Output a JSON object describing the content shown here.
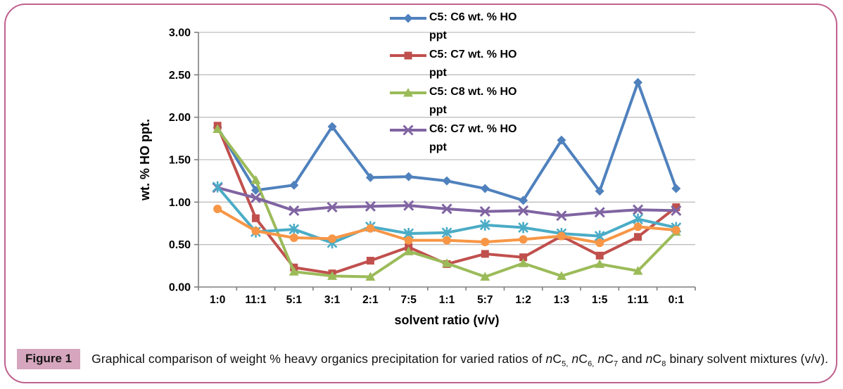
{
  "figure": {
    "caption_label": "Figure 1",
    "caption_segments": [
      {
        "t": "Graphical comparison of weight % heavy organics precipitation for varied ratios of "
      },
      {
        "t": "n",
        "i": true
      },
      {
        "t": "C"
      },
      {
        "t": "5,",
        "sub": true
      },
      {
        "t": " "
      },
      {
        "t": "n",
        "i": true
      },
      {
        "t": "C"
      },
      {
        "t": "6,",
        "sub": true
      },
      {
        "t": " "
      },
      {
        "t": "n",
        "i": true
      },
      {
        "t": "C"
      },
      {
        "t": "7",
        "sub": true
      },
      {
        "t": " and "
      },
      {
        "t": "n",
        "i": true
      },
      {
        "t": "C"
      },
      {
        "t": "8",
        "sub": true
      },
      {
        "t": " binary solvent mixtures (v/v)."
      }
    ]
  },
  "style": {
    "border_color": "#c0618e",
    "caption_badge_bg": "#d5a6bd",
    "gridline_color": "#bfbfbf",
    "axis_color": "#7f7f7f",
    "text_color": "#000000"
  },
  "chart_data": {
    "type": "line",
    "title": "",
    "xlabel": "solvent ratio (v/v)",
    "ylabel": "wt. % HO ppt.",
    "ylim": [
      0,
      3.0
    ],
    "ytick_step": 0.5,
    "ytick_labels": [
      "0.00",
      "0.50",
      "1.00",
      "1.50",
      "2.00",
      "2.50",
      "3.00"
    ],
    "grid": true,
    "legend_position": "top-inside-right",
    "categories": [
      "1:0",
      "11:1",
      "5:1",
      "3:1",
      "2:1",
      "7:5",
      "1:1",
      "5:7",
      "1:2",
      "1:3",
      "1:5",
      "1:11",
      "0:1"
    ],
    "series": [
      {
        "name": "C5: C6 wt. % HO ppt",
        "legend_label": "C5: C6 wt. % HO\nppt",
        "in_legend": true,
        "color": "#4f81bd",
        "marker": "diamond",
        "values": [
          1.88,
          1.14,
          1.2,
          1.89,
          1.29,
          1.3,
          1.25,
          1.16,
          1.02,
          1.73,
          1.13,
          2.41,
          1.16
        ]
      },
      {
        "name": "C5: C7 wt. % HO ppt",
        "legend_label": "C5: C7 wt. % HO\nppt",
        "in_legend": true,
        "color": "#c0504d",
        "marker": "square",
        "values": [
          1.9,
          0.81,
          0.23,
          0.16,
          0.31,
          0.47,
          0.27,
          0.39,
          0.35,
          0.6,
          0.37,
          0.59,
          0.94
        ]
      },
      {
        "name": "C5: C8 wt. % HO ppt",
        "legend_label": "C5: C8 wt. % HO\nppt",
        "in_legend": true,
        "color": "#9bbb59",
        "marker": "triangle",
        "values": [
          1.86,
          1.26,
          0.18,
          0.13,
          0.12,
          0.42,
          0.28,
          0.12,
          0.28,
          0.13,
          0.27,
          0.19,
          0.65
        ]
      },
      {
        "name": "C6: C7 wt. % HO ppt",
        "legend_label": "C6: C7 wt. % HO\nppt",
        "in_legend": true,
        "color": "#8064a2",
        "marker": "x",
        "values": [
          1.17,
          1.05,
          0.9,
          0.94,
          0.95,
          0.96,
          0.92,
          0.89,
          0.9,
          0.84,
          0.88,
          0.91,
          0.9
        ]
      },
      {
        "name": "",
        "legend_label": "",
        "in_legend": false,
        "color": "#4bacc6",
        "marker": "asterisk",
        "values": [
          1.18,
          0.65,
          0.68,
          0.52,
          0.71,
          0.63,
          0.64,
          0.73,
          0.7,
          0.63,
          0.6,
          0.8,
          0.7
        ]
      },
      {
        "name": "",
        "legend_label": "",
        "in_legend": false,
        "color": "#f79646",
        "marker": "circle",
        "values": [
          0.92,
          0.66,
          0.58,
          0.57,
          0.69,
          0.55,
          0.55,
          0.53,
          0.56,
          0.6,
          0.52,
          0.71,
          0.67
        ]
      }
    ]
  }
}
